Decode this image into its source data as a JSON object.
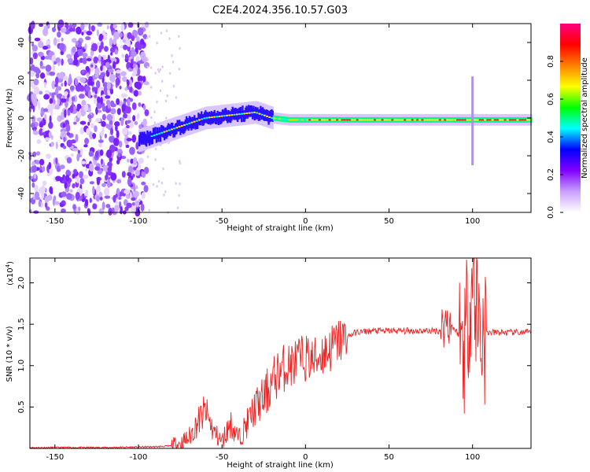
{
  "title": "C2E4.2024.356.10.57.G03",
  "chart_data": [
    {
      "type": "heatmap",
      "xlabel": "Height of straight line (km)",
      "ylabel": "Frequency (Hz)",
      "xlim": [
        -165,
        135
      ],
      "ylim": [
        -50,
        50
      ],
      "x_ticks": [
        -150,
        -100,
        -50,
        0,
        50,
        100
      ],
      "y_ticks": [
        -40,
        -20,
        0,
        20,
        40
      ],
      "colorbar": {
        "label": "Normalized spectral amplitude",
        "range": [
          0,
          1
        ],
        "ticks": [
          0.0,
          0.2,
          0.4,
          0.6,
          0.8
        ],
        "colormap": [
          "#ffffff",
          "#c8a0ff",
          "#8000ff",
          "#0000ff",
          "#00ffff",
          "#00ff00",
          "#ffff00",
          "#ff8000",
          "#ff0000",
          "#ff0080"
        ]
      },
      "noise_region_x": [
        -165,
        -95
      ],
      "ridge": {
        "x": [
          -100,
          -90,
          -80,
          -70,
          -60,
          -50,
          -40,
          -30,
          -20,
          -10,
          0,
          20,
          40,
          60,
          80,
          90,
          100,
          110,
          120,
          135
        ],
        "frequency": [
          -12,
          -9,
          -6,
          -3,
          0,
          1,
          2,
          3,
          0,
          -1,
          -1,
          -1,
          -1,
          -1,
          -1,
          -1,
          -1,
          -1,
          -1,
          -1
        ]
      },
      "spike": {
        "x": 100,
        "frequency_range": [
          -25,
          22
        ]
      }
    },
    {
      "type": "line",
      "xlabel": "Height of straight line (km)",
      "ylabel": "SNR (10 * v/v)",
      "y_multiplier": "(x10",
      "y_multiplier_exp": "4",
      "xlim": [
        -165,
        135
      ],
      "ylim": [
        0,
        2.3
      ],
      "x_ticks": [
        -150,
        -100,
        -50,
        0,
        50,
        100
      ],
      "y_ticks": [
        0.5,
        1.0,
        1.5,
        2.0
      ],
      "series": [
        {
          "color": "#ee2222",
          "x": [
            -165,
            -120,
            -90,
            -80,
            -75,
            -70,
            -65,
            -60,
            -55,
            -50,
            -45,
            -40,
            -35,
            -30,
            -25,
            -20,
            -15,
            -10,
            -5,
            0,
            5,
            10,
            15,
            20,
            25,
            30,
            40,
            50,
            60,
            70,
            80,
            85,
            90,
            95,
            100,
            105,
            110,
            120,
            135
          ],
          "y": [
            0.01,
            0.01,
            0.02,
            0.03,
            0.06,
            0.12,
            0.3,
            0.45,
            0.2,
            0.08,
            0.3,
            0.12,
            0.3,
            0.5,
            0.6,
            0.8,
            0.95,
            1.0,
            1.05,
            1.1,
            1.05,
            1.15,
            1.2,
            1.3,
            1.35,
            1.4,
            1.42,
            1.42,
            1.42,
            1.42,
            1.42,
            1.55,
            1.42,
            1.3,
            2.1,
            1.4,
            1.4,
            1.4,
            1.4
          ]
        }
      ]
    }
  ]
}
